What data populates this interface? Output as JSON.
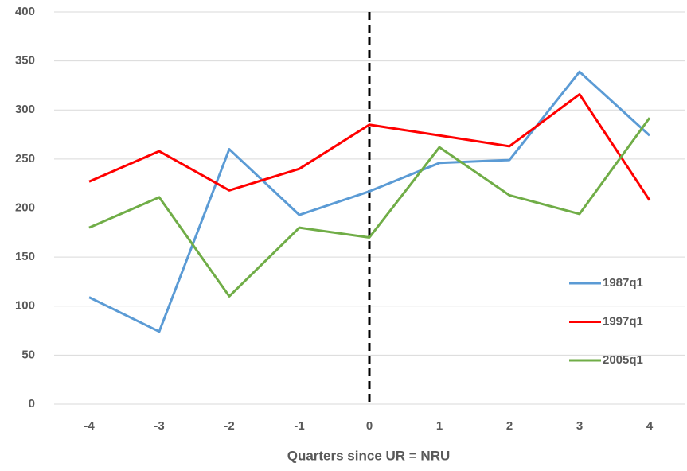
{
  "chart_data": {
    "type": "line",
    "x_label": "Quarters since UR = NRU",
    "categories": [
      "-4",
      "-3",
      "-2",
      "-1",
      "0",
      "1",
      "2",
      "3",
      "4"
    ],
    "series": [
      {
        "name": "1987q1",
        "color": "#5b9bd5",
        "values": [
          109,
          74,
          260,
          193,
          217,
          246,
          249,
          339,
          274
        ]
      },
      {
        "name": "1997q1",
        "color": "#ff0000",
        "values": [
          227,
          258,
          218,
          240,
          285,
          274,
          263,
          316,
          208
        ]
      },
      {
        "name": "2005q1",
        "color": "#70ad47",
        "values": [
          180,
          211,
          110,
          180,
          170,
          262,
          213,
          194,
          292
        ]
      }
    ],
    "reference_category": "0",
    "ylim": [
      0,
      400
    ],
    "yticks": [
      0,
      50,
      100,
      150,
      200,
      250,
      300,
      350,
      400
    ],
    "grid": true,
    "legend": "right"
  }
}
